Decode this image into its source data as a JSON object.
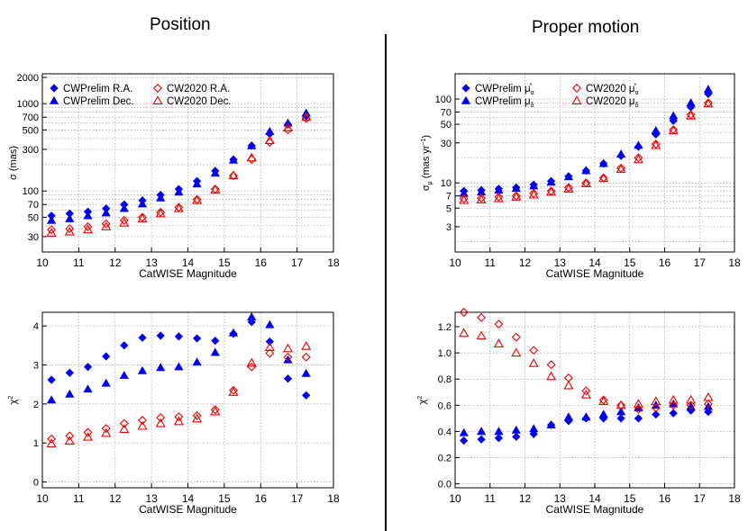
{
  "section_titles": {
    "left": "Position",
    "right": "Proper motion"
  },
  "colors": {
    "cwprelim": "#0000ee",
    "cw2020": "#ee0000"
  },
  "chart_data": [
    {
      "id": "pos-sigma",
      "type": "scatter",
      "xlabel": "CatWISE Magnitude",
      "ylabel": "σ (mas)",
      "ylabel_parts": [
        {
          "t": "σ (mas)"
        }
      ],
      "xlim": [
        10,
        18
      ],
      "xticks": [
        10,
        11,
        12,
        13,
        14,
        15,
        16,
        17,
        18
      ],
      "yscale": "log",
      "ylim": [
        20,
        2200
      ],
      "yticks": [
        30,
        50,
        70,
        100,
        300,
        500,
        700,
        1000,
        2000
      ],
      "ygrid": [
        30,
        40,
        50,
        60,
        70,
        80,
        90,
        100,
        200,
        300,
        400,
        500,
        600,
        700,
        800,
        900,
        1000,
        2000
      ],
      "x": [
        10.25,
        10.75,
        11.25,
        11.75,
        12.25,
        12.75,
        13.25,
        13.75,
        14.25,
        14.75,
        15.25,
        15.75,
        16.25,
        16.75,
        17.25
      ],
      "legend": [
        {
          "label": "CWPrelim R.A.",
          "sup": "",
          "sub": ""
        },
        {
          "label": "CWPrelim Dec.",
          "sup": "",
          "sub": ""
        },
        {
          "label": "CW2020 R.A.",
          "sup": "",
          "sub": ""
        },
        {
          "label": "CW2020 Dec.",
          "sup": "",
          "sub": ""
        }
      ],
      "series": [
        {
          "name": "CWPrelim R.A.",
          "marker": "diamond-filled",
          "color": "#0000ee",
          "values": [
            52,
            55,
            58,
            63,
            70,
            78,
            90,
            105,
            130,
            170,
            230,
            330,
            450,
            580,
            720
          ]
        },
        {
          "name": "CWPrelim Dec.",
          "marker": "triangle-filled",
          "color": "#0000ee",
          "values": [
            46,
            48,
            52,
            56,
            63,
            71,
            83,
            97,
            120,
            160,
            225,
            330,
            480,
            600,
            780
          ]
        },
        {
          "name": "CW2020 R.A.",
          "marker": "diamond-open",
          "color": "#ee0000",
          "values": [
            36,
            37,
            39,
            42,
            46,
            50,
            57,
            65,
            80,
            105,
            150,
            230,
            360,
            500,
            680
          ]
        },
        {
          "name": "CW2020 Dec.",
          "marker": "triangle-open",
          "color": "#ee0000",
          "values": [
            33,
            34,
            36,
            39,
            43,
            48,
            55,
            63,
            78,
            103,
            150,
            240,
            380,
            530,
            700
          ]
        }
      ]
    },
    {
      "id": "pm-sigma",
      "type": "scatter",
      "xlabel": "CatWISE Magnitude",
      "ylabel": "σμ (mas yr−1)",
      "ylabel_parts": [
        {
          "t": "σ"
        },
        {
          "t": "μ",
          "sub": true
        },
        {
          "t": " (mas yr"
        },
        {
          "t": "−1",
          "sup": true
        },
        {
          "t": ")"
        }
      ],
      "xlim": [
        10,
        18
      ],
      "xticks": [
        10,
        11,
        12,
        13,
        14,
        15,
        16,
        17,
        18
      ],
      "yscale": "log",
      "ylim": [
        1.5,
        200
      ],
      "yticks": [
        3,
        5,
        7,
        10,
        30,
        50,
        70,
        100
      ],
      "ygrid": [
        2,
        3,
        4,
        5,
        6,
        7,
        8,
        9,
        10,
        20,
        30,
        40,
        50,
        60,
        70,
        80,
        90,
        100
      ],
      "x": [
        10.25,
        10.75,
        11.25,
        11.75,
        12.25,
        12.75,
        13.25,
        13.75,
        14.25,
        14.75,
        15.25,
        15.75,
        16.25,
        16.75,
        17.25
      ],
      "legend": [
        {
          "label": "CWPrelim μ",
          "sup": "*",
          "sub": "α"
        },
        {
          "label": "CWPrelim μ",
          "sup": "",
          "sub": "δ"
        },
        {
          "label": "CW2020 μ",
          "sup": "*",
          "sub": "α"
        },
        {
          "label": "CW2020 μ",
          "sup": "",
          "sub": "δ"
        }
      ],
      "series": [
        {
          "name": "CWPrelim μα*",
          "marker": "diamond-filled",
          "color": "#0000ee",
          "values": [
            8,
            8.2,
            8.5,
            8.8,
            9.5,
            10.5,
            12,
            14,
            17,
            21,
            27,
            38,
            55,
            80,
            115
          ]
        },
        {
          "name": "CWPrelim μδ",
          "marker": "triangle-filled",
          "color": "#0000ee",
          "values": [
            7.5,
            7.8,
            8.2,
            8.6,
            9.2,
            10.2,
            11.8,
            14,
            17,
            22,
            28,
            42,
            63,
            90,
            130
          ]
        },
        {
          "name": "CW2020 μα*",
          "marker": "diamond-open",
          "color": "#ee0000",
          "values": [
            6.5,
            6.6,
            6.8,
            7,
            7.5,
            8,
            8.8,
            10,
            11.5,
            15,
            20,
            29,
            43,
            65,
            90
          ]
        },
        {
          "name": "CW2020 μδ",
          "marker": "triangle-open",
          "color": "#ee0000",
          "values": [
            6.2,
            6.3,
            6.5,
            6.8,
            7.2,
            7.8,
            8.5,
            9.8,
            11.3,
            14.5,
            19,
            28,
            42,
            63,
            88
          ]
        }
      ]
    },
    {
      "id": "pos-chi2",
      "type": "scatter",
      "xlabel": "CatWISE Magnitude",
      "ylabel": "χ2",
      "ylabel_parts": [
        {
          "t": "χ"
        },
        {
          "t": "2",
          "sup": true
        }
      ],
      "xlim": [
        10,
        18
      ],
      "xticks": [
        10,
        11,
        12,
        13,
        14,
        15,
        16,
        17,
        18
      ],
      "yscale": "linear",
      "ylim": [
        -0.15,
        4.35
      ],
      "yticks": [
        0,
        1,
        2,
        3,
        4
      ],
      "ygrid": [
        0,
        1,
        2,
        3,
        4
      ],
      "x": [
        10.25,
        10.75,
        11.25,
        11.75,
        12.25,
        12.75,
        13.25,
        13.75,
        14.25,
        14.75,
        15.25,
        15.75,
        16.25,
        16.75,
        17.25
      ],
      "legend": [],
      "series": [
        {
          "name": "CWPrelim R.A.",
          "marker": "diamond-filled",
          "color": "#0000ee",
          "values": [
            2.62,
            2.8,
            2.95,
            3.22,
            3.5,
            3.7,
            3.75,
            3.73,
            3.68,
            3.62,
            3.8,
            4.1,
            3.6,
            2.65,
            2.22
          ]
        },
        {
          "name": "CWPrelim Dec.",
          "marker": "triangle-filled",
          "color": "#0000ee",
          "values": [
            2.1,
            2.25,
            2.38,
            2.53,
            2.73,
            2.85,
            2.93,
            2.95,
            3.07,
            3.32,
            3.82,
            4.23,
            4.03,
            3.13,
            2.78
          ]
        },
        {
          "name": "CW2020 R.A.",
          "marker": "diamond-open",
          "color": "#ee0000",
          "values": [
            1.1,
            1.18,
            1.27,
            1.37,
            1.5,
            1.58,
            1.65,
            1.67,
            1.7,
            1.85,
            2.35,
            2.95,
            3.3,
            3.2,
            3.2
          ]
        },
        {
          "name": "CW2020 Dec.",
          "marker": "triangle-open",
          "color": "#ee0000",
          "values": [
            0.98,
            1.05,
            1.15,
            1.25,
            1.35,
            1.43,
            1.5,
            1.55,
            1.62,
            1.8,
            2.3,
            3.05,
            3.45,
            3.42,
            3.48
          ]
        }
      ]
    },
    {
      "id": "pm-chi2",
      "type": "scatter",
      "xlabel": "CatWISE Magnitude",
      "ylabel": "χ2",
      "ylabel_parts": [
        {
          "t": "χ"
        },
        {
          "t": "2",
          "sup": true
        }
      ],
      "xlim": [
        10,
        18
      ],
      "xticks": [
        10,
        11,
        12,
        13,
        14,
        15,
        16,
        17,
        18
      ],
      "yscale": "linear",
      "ylim": [
        -0.03,
        1.31
      ],
      "yticks": [
        0.0,
        0.2,
        0.4,
        0.6,
        0.8,
        1.0,
        1.2
      ],
      "ygrid": [
        0.0,
        0.2,
        0.4,
        0.6,
        0.8,
        1.0,
        1.2
      ],
      "x": [
        10.25,
        10.75,
        11.25,
        11.75,
        12.25,
        12.75,
        13.25,
        13.75,
        14.25,
        14.75,
        15.25,
        15.75,
        16.25,
        16.75,
        17.25
      ],
      "legend": [],
      "series": [
        {
          "name": "CWPrelim μα*",
          "marker": "diamond-filled",
          "color": "#0000ee",
          "values": [
            0.33,
            0.34,
            0.35,
            0.36,
            0.38,
            0.45,
            0.48,
            0.5,
            0.5,
            0.5,
            0.5,
            0.53,
            0.54,
            0.56,
            0.55
          ]
        },
        {
          "name": "CWPrelim μδ",
          "marker": "triangle-filled",
          "color": "#0000ee",
          "values": [
            0.39,
            0.4,
            0.4,
            0.41,
            0.42,
            0.45,
            0.51,
            0.51,
            0.53,
            0.55,
            0.58,
            0.6,
            0.61,
            0.59,
            0.59
          ]
        },
        {
          "name": "CW2020 μα*",
          "marker": "diamond-open",
          "color": "#ee0000",
          "values": [
            1.31,
            1.27,
            1.22,
            1.12,
            1.02,
            0.91,
            0.81,
            0.71,
            0.64,
            0.6,
            0.57,
            0.58,
            0.6,
            0.6,
            0.61
          ]
        },
        {
          "name": "CW2020 μδ",
          "marker": "triangle-open",
          "color": "#ee0000",
          "values": [
            1.15,
            1.13,
            1.07,
            1.0,
            0.92,
            0.82,
            0.75,
            0.68,
            0.63,
            0.6,
            0.61,
            0.63,
            0.64,
            0.64,
            0.66
          ]
        }
      ]
    }
  ]
}
